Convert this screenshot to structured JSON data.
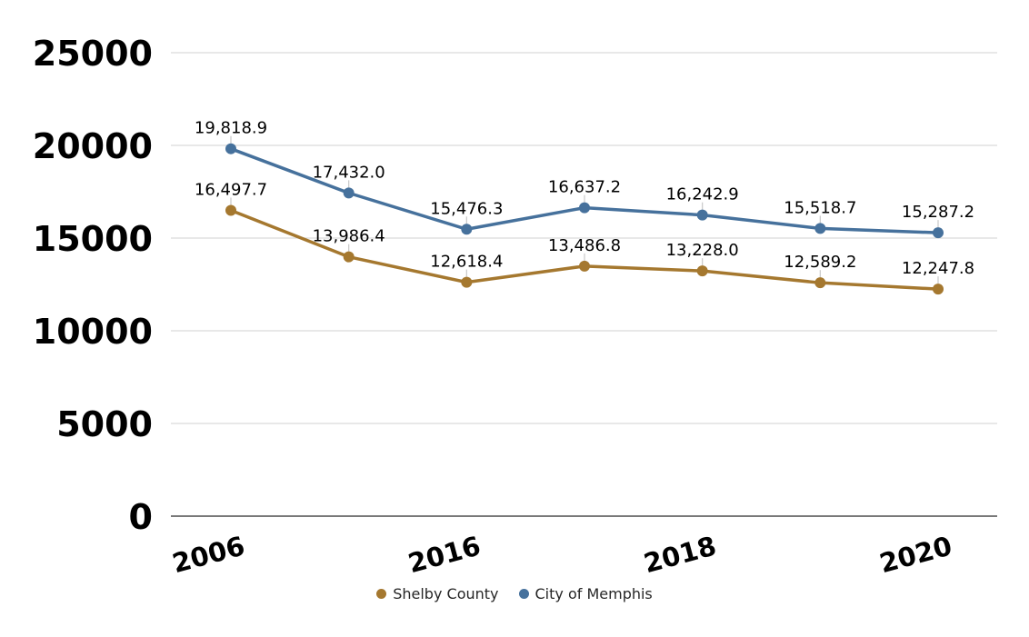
{
  "chart_data": {
    "type": "line",
    "categories": [
      "2006",
      "",
      "2016",
      "",
      "2018",
      "",
      "2020"
    ],
    "series": [
      {
        "name": "Shelby County",
        "color": "#A5782F",
        "values": [
          16497.7,
          13986.4,
          12618.4,
          13486.8,
          13228.0,
          12589.2,
          12247.8
        ],
        "data_labels": [
          "16,497.7",
          "13,986.4",
          "12,618.4",
          "13,486.8",
          "13,228.0",
          "12,589.2",
          "12,247.8"
        ]
      },
      {
        "name": "City of Memphis",
        "color": "#46719C",
        "values": [
          19818.9,
          17432.0,
          15476.3,
          16637.2,
          16242.9,
          15518.7,
          15287.2
        ],
        "data_labels": [
          "19,818.9",
          "17,432.0",
          "15,476.3",
          "16,637.2",
          "16,242.9",
          "15,518.7",
          "15,287.2"
        ]
      }
    ],
    "y_ticks": [
      0,
      5000,
      10000,
      15000,
      20000,
      25000
    ],
    "y_tick_labels": [
      "0",
      "5000",
      "10000",
      "15000",
      "20000",
      "25000"
    ],
    "ylim": [
      0,
      25000
    ],
    "title": "",
    "xlabel": "",
    "ylabel": "",
    "grid": "horizontal",
    "legend_position": "bottom-center",
    "x_label_rotation_deg": -15,
    "data_labels_shown": true
  },
  "styles": {
    "background": "#ffffff",
    "grid_color": "#d9d9d9",
    "axis_line_color": "#4d4d4d",
    "leader_line_color": "#c9c9c9",
    "tick_label_color": "#000000",
    "data_label_color": "#000000",
    "legend_text_color": "#262626"
  }
}
